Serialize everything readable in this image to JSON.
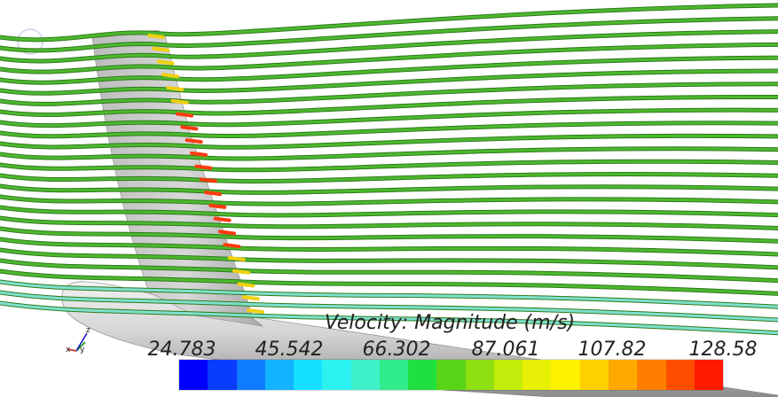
{
  "colorbar": {
    "title": "Velocity: Magnitude (m/s)",
    "ticks": [
      "24.783",
      "45.542",
      "66.302",
      "87.061",
      "107.82",
      "128.58"
    ],
    "range": [
      24.783,
      128.58
    ],
    "colors": [
      "#0000ff",
      "#0a3cff",
      "#0f7cff",
      "#12b3ff",
      "#16e0ff",
      "#2cf2f0",
      "#3cf0c8",
      "#30ec8c",
      "#20e040",
      "#5ad418",
      "#8ee010",
      "#c3ec0a",
      "#e8f006",
      "#fff200",
      "#ffd000",
      "#ffa800",
      "#ff7e00",
      "#ff4d00",
      "#ff1a00"
    ]
  },
  "axes_triad": {
    "labels": [
      "z",
      "y",
      "x"
    ],
    "colors": {
      "x": "#d01a1a",
      "y": "#1a9a1a",
      "z": "#1a1acc"
    }
  },
  "streamline_base_color": "#4cb82e",
  "surface_color": "#c8c8c8"
}
